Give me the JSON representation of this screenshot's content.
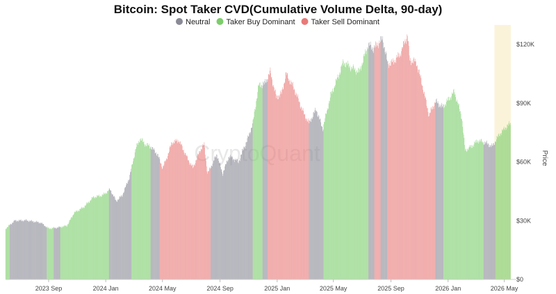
{
  "chart_data": {
    "type": "bar",
    "title": "Bitcoin: Spot Taker CVD(Cumulative Volume Delta, 90-day)",
    "watermark": "CryptoQuant",
    "ylabel": "Price",
    "ylim": [
      0,
      130000
    ],
    "y_ticks": [
      {
        "value": 0,
        "label": "$0"
      },
      {
        "value": 30000,
        "label": "$30K"
      },
      {
        "value": 60000,
        "label": "$60K"
      },
      {
        "value": 90000,
        "label": "$90K"
      },
      {
        "value": 120000,
        "label": "$120K"
      }
    ],
    "x_range": [
      "2023-06-01",
      "2026-05-15"
    ],
    "x_ticks": [
      {
        "date": "2023-09-01",
        "label": "2023 Sep"
      },
      {
        "date": "2024-01-01",
        "label": "2024 Jan"
      },
      {
        "date": "2024-05-01",
        "label": "2024 May"
      },
      {
        "date": "2024-09-01",
        "label": "2024 Sep"
      },
      {
        "date": "2025-01-01",
        "label": "2025 Jan"
      },
      {
        "date": "2025-05-01",
        "label": "2025 May"
      },
      {
        "date": "2025-09-01",
        "label": "2025 Sep"
      },
      {
        "date": "2026-01-01",
        "label": "2026 Jan"
      },
      {
        "date": "2026-05-01",
        "label": "2026 May"
      }
    ],
    "highlight": {
      "start": "2026-04-10",
      "end": "2026-05-15",
      "color": "#fbf3d9"
    },
    "legend": {
      "placement": "top",
      "items": [
        {
          "key": "neutral",
          "label": "Neutral",
          "color": "#8a8a96"
        },
        {
          "key": "buy",
          "label": "Taker Buy Dominant",
          "color": "#7ccd6b"
        },
        {
          "key": "sell",
          "label": "Taker Sell Dominant",
          "color": "#e87a78"
        }
      ]
    },
    "price": [
      [
        "2023-06-01",
        26000
      ],
      [
        "2023-06-20",
        30000
      ],
      [
        "2023-07-15",
        30200
      ],
      [
        "2023-08-15",
        29000
      ],
      [
        "2023-09-01",
        26000
      ],
      [
        "2023-09-20",
        26500
      ],
      [
        "2023-10-10",
        27500
      ],
      [
        "2023-10-25",
        34000
      ],
      [
        "2023-11-15",
        37000
      ],
      [
        "2023-12-05",
        42000
      ],
      [
        "2023-12-25",
        43000
      ],
      [
        "2024-01-10",
        46000
      ],
      [
        "2024-01-23",
        40000
      ],
      [
        "2024-02-05",
        43000
      ],
      [
        "2024-02-20",
        52000
      ],
      [
        "2024-03-05",
        67000
      ],
      [
        "2024-03-14",
        72000
      ],
      [
        "2024-03-25",
        69000
      ],
      [
        "2024-04-05",
        68000
      ],
      [
        "2024-04-20",
        64000
      ],
      [
        "2024-05-01",
        57000
      ],
      [
        "2024-05-10",
        62000
      ],
      [
        "2024-05-21",
        70000
      ],
      [
        "2024-06-05",
        71000
      ],
      [
        "2024-06-25",
        61000
      ],
      [
        "2024-07-05",
        57000
      ],
      [
        "2024-07-20",
        66000
      ],
      [
        "2024-07-29",
        69000
      ],
      [
        "2024-08-05",
        54000
      ],
      [
        "2024-08-25",
        64000
      ],
      [
        "2024-09-06",
        54000
      ],
      [
        "2024-09-20",
        63000
      ],
      [
        "2024-10-10",
        60000
      ],
      [
        "2024-10-30",
        72000
      ],
      [
        "2024-11-10",
        80000
      ],
      [
        "2024-11-22",
        99000
      ],
      [
        "2024-12-05",
        100000
      ],
      [
        "2024-12-17",
        106000
      ],
      [
        "2024-12-30",
        93000
      ],
      [
        "2025-01-10",
        95000
      ],
      [
        "2025-01-20",
        105000
      ],
      [
        "2025-02-05",
        98000
      ],
      [
        "2025-02-28",
        84000
      ],
      [
        "2025-03-10",
        80000
      ],
      [
        "2025-03-25",
        87000
      ],
      [
        "2025-04-08",
        77000
      ],
      [
        "2025-04-25",
        94000
      ],
      [
        "2025-05-10",
        103000
      ],
      [
        "2025-05-22",
        111000
      ],
      [
        "2025-06-10",
        108000
      ],
      [
        "2025-06-25",
        106000
      ],
      [
        "2025-07-14",
        120000
      ],
      [
        "2025-07-25",
        118000
      ],
      [
        "2025-08-14",
        123000
      ],
      [
        "2025-08-25",
        110000
      ],
      [
        "2025-09-05",
        111000
      ],
      [
        "2025-09-20",
        115000
      ],
      [
        "2025-10-06",
        125000
      ],
      [
        "2025-10-11",
        112000
      ],
      [
        "2025-10-25",
        111000
      ],
      [
        "2025-11-05",
        101000
      ],
      [
        "2025-11-21",
        84000
      ],
      [
        "2025-12-05",
        91000
      ],
      [
        "2025-12-20",
        88000
      ],
      [
        "2026-01-05",
        93000
      ],
      [
        "2026-01-14",
        96000
      ],
      [
        "2026-01-30",
        83000
      ],
      [
        "2026-02-06",
        66000
      ],
      [
        "2026-02-20",
        68000
      ],
      [
        "2026-03-05",
        71000
      ],
      [
        "2026-03-20",
        70000
      ],
      [
        "2026-04-05",
        68000
      ],
      [
        "2026-04-20",
        74000
      ],
      [
        "2026-05-05",
        78000
      ],
      [
        "2026-05-15",
        80000
      ]
    ],
    "regimes": [
      {
        "start": "2023-06-01",
        "end": "2023-06-10",
        "type": "buy"
      },
      {
        "start": "2023-06-10",
        "end": "2023-08-28",
        "type": "neutral"
      },
      {
        "start": "2023-08-28",
        "end": "2023-09-12",
        "type": "buy"
      },
      {
        "start": "2023-09-12",
        "end": "2023-09-26",
        "type": "neutral"
      },
      {
        "start": "2023-09-26",
        "end": "2024-01-08",
        "type": "buy"
      },
      {
        "start": "2024-01-08",
        "end": "2024-02-25",
        "type": "neutral"
      },
      {
        "start": "2024-02-25",
        "end": "2024-04-06",
        "type": "buy"
      },
      {
        "start": "2024-04-06",
        "end": "2024-04-25",
        "type": "neutral"
      },
      {
        "start": "2024-04-25",
        "end": "2024-08-12",
        "type": "sell"
      },
      {
        "start": "2024-08-12",
        "end": "2024-11-10",
        "type": "neutral"
      },
      {
        "start": "2024-11-10",
        "end": "2024-12-01",
        "type": "buy"
      },
      {
        "start": "2024-12-01",
        "end": "2024-12-12",
        "type": "neutral"
      },
      {
        "start": "2024-12-12",
        "end": "2025-03-10",
        "type": "sell"
      },
      {
        "start": "2025-03-10",
        "end": "2025-04-10",
        "type": "neutral"
      },
      {
        "start": "2025-04-10",
        "end": "2025-07-15",
        "type": "buy"
      },
      {
        "start": "2025-07-15",
        "end": "2025-07-28",
        "type": "neutral"
      },
      {
        "start": "2025-07-28",
        "end": "2025-08-10",
        "type": "sell"
      },
      {
        "start": "2025-08-10",
        "end": "2025-08-24",
        "type": "neutral"
      },
      {
        "start": "2025-08-24",
        "end": "2025-12-05",
        "type": "sell"
      },
      {
        "start": "2025-12-05",
        "end": "2025-12-22",
        "type": "neutral"
      },
      {
        "start": "2025-12-22",
        "end": "2026-03-18",
        "type": "buy"
      },
      {
        "start": "2026-03-18",
        "end": "2026-04-12",
        "type": "neutral"
      },
      {
        "start": "2026-04-12",
        "end": "2026-05-15",
        "type": "buy"
      }
    ]
  }
}
